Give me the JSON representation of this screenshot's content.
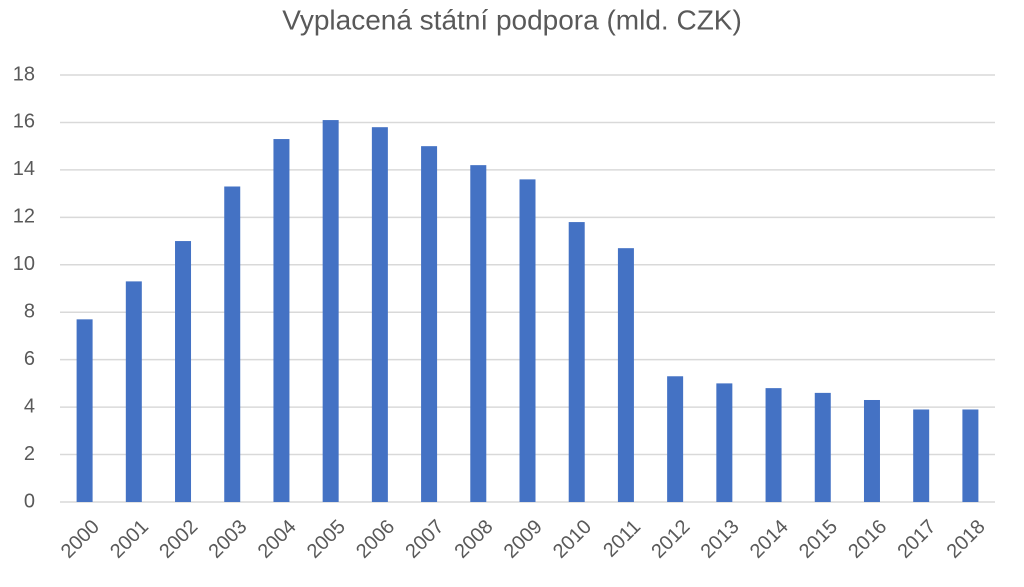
{
  "chart_data": {
    "type": "bar",
    "title": "Vyplacená státní podpora (mld. CZK)",
    "categories": [
      "2000",
      "2001",
      "2002",
      "2003",
      "2004",
      "2005",
      "2006",
      "2007",
      "2008",
      "2009",
      "2010",
      "2011",
      "2012",
      "2013",
      "2014",
      "2015",
      "2016",
      "2017",
      "2018"
    ],
    "values": [
      7.7,
      9.3,
      11.0,
      13.3,
      15.3,
      16.1,
      15.8,
      15.0,
      14.2,
      13.6,
      11.8,
      10.7,
      5.3,
      5.0,
      4.8,
      4.6,
      4.3,
      3.9,
      3.9
    ],
    "color": "#4472c4",
    "ylim": [
      0,
      18
    ],
    "yticks": [
      0,
      2,
      4,
      6,
      8,
      10,
      12,
      14,
      16,
      18
    ],
    "grid": true
  }
}
